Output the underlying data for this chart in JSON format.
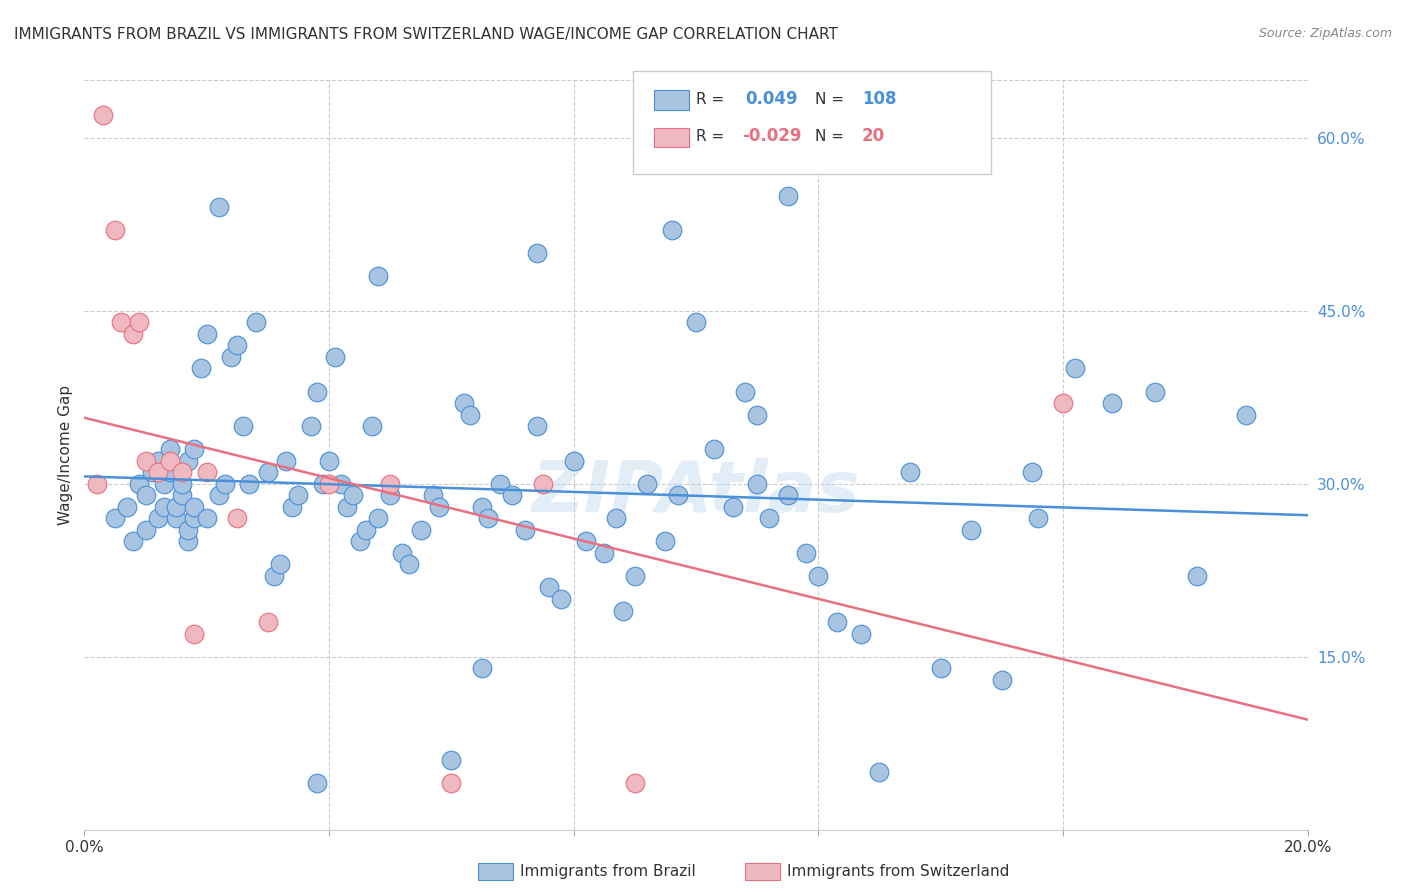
{
  "title": "IMMIGRANTS FROM BRAZIL VS IMMIGRANTS FROM SWITZERLAND WAGE/INCOME GAP CORRELATION CHART",
  "source": "Source: ZipAtlas.com",
  "ylabel": "Wage/Income Gap",
  "x_min": 0.0,
  "x_max": 0.2,
  "y_min": 0.0,
  "y_max": 0.65,
  "x_ticks": [
    0.0,
    0.04,
    0.08,
    0.12,
    0.16,
    0.2
  ],
  "x_tick_labels": [
    "0.0%",
    "",
    "",
    "",
    "",
    "20.0%"
  ],
  "y_ticks_right": [
    0.15,
    0.3,
    0.45,
    0.6
  ],
  "y_tick_labels_right": [
    "15.0%",
    "30.0%",
    "45.0%",
    "60.0%"
  ],
  "brazil_R": "0.049",
  "brazil_N": "108",
  "swiss_R": "-0.029",
  "swiss_N": "20",
  "brazil_color": "#a8c4e0",
  "swiss_color": "#f0b8c0",
  "brazil_line_color": "#4a90d9",
  "swiss_line_color": "#e87080",
  "legend_label_brazil": "Immigrants from Brazil",
  "legend_label_swiss": "Immigrants from Switzerland",
  "brazil_scatter_x": [
    0.005,
    0.007,
    0.008,
    0.009,
    0.01,
    0.01,
    0.011,
    0.012,
    0.012,
    0.013,
    0.013,
    0.014,
    0.014,
    0.015,
    0.015,
    0.016,
    0.016,
    0.017,
    0.017,
    0.017,
    0.018,
    0.018,
    0.018,
    0.019,
    0.02,
    0.02,
    0.022,
    0.023,
    0.024,
    0.025,
    0.026,
    0.027,
    0.028,
    0.03,
    0.031,
    0.032,
    0.033,
    0.034,
    0.035,
    0.037,
    0.038,
    0.039,
    0.04,
    0.041,
    0.042,
    0.043,
    0.044,
    0.045,
    0.046,
    0.047,
    0.048,
    0.05,
    0.052,
    0.053,
    0.055,
    0.057,
    0.058,
    0.06,
    0.062,
    0.063,
    0.065,
    0.066,
    0.068,
    0.07,
    0.072,
    0.074,
    0.076,
    0.078,
    0.08,
    0.082,
    0.085,
    0.087,
    0.088,
    0.09,
    0.092,
    0.095,
    0.097,
    0.1,
    0.103,
    0.106,
    0.108,
    0.11,
    0.112,
    0.115,
    0.118,
    0.12,
    0.123,
    0.127,
    0.13,
    0.135,
    0.14,
    0.145,
    0.15,
    0.156,
    0.162,
    0.168,
    0.175,
    0.182,
    0.19,
    0.115,
    0.096,
    0.074,
    0.048,
    0.022,
    0.11,
    0.065,
    0.038,
    0.155
  ],
  "brazil_scatter_y": [
    0.27,
    0.28,
    0.25,
    0.3,
    0.26,
    0.29,
    0.31,
    0.27,
    0.32,
    0.28,
    0.3,
    0.31,
    0.33,
    0.27,
    0.28,
    0.29,
    0.3,
    0.25,
    0.26,
    0.32,
    0.33,
    0.27,
    0.28,
    0.4,
    0.27,
    0.43,
    0.29,
    0.3,
    0.41,
    0.42,
    0.35,
    0.3,
    0.44,
    0.31,
    0.22,
    0.23,
    0.32,
    0.28,
    0.29,
    0.35,
    0.38,
    0.3,
    0.32,
    0.41,
    0.3,
    0.28,
    0.29,
    0.25,
    0.26,
    0.35,
    0.27,
    0.29,
    0.24,
    0.23,
    0.26,
    0.29,
    0.28,
    0.06,
    0.37,
    0.36,
    0.28,
    0.27,
    0.3,
    0.29,
    0.26,
    0.35,
    0.21,
    0.2,
    0.32,
    0.25,
    0.24,
    0.27,
    0.19,
    0.22,
    0.3,
    0.25,
    0.29,
    0.44,
    0.33,
    0.28,
    0.38,
    0.3,
    0.27,
    0.29,
    0.24,
    0.22,
    0.18,
    0.17,
    0.05,
    0.31,
    0.14,
    0.26,
    0.13,
    0.27,
    0.4,
    0.37,
    0.38,
    0.22,
    0.36,
    0.55,
    0.52,
    0.5,
    0.48,
    0.54,
    0.36,
    0.14,
    0.04,
    0.31
  ],
  "swiss_scatter_x": [
    0.002,
    0.003,
    0.005,
    0.006,
    0.008,
    0.009,
    0.01,
    0.012,
    0.014,
    0.016,
    0.018,
    0.02,
    0.025,
    0.03,
    0.04,
    0.05,
    0.06,
    0.075,
    0.09,
    0.16
  ],
  "swiss_scatter_y": [
    0.3,
    0.62,
    0.52,
    0.44,
    0.43,
    0.44,
    0.32,
    0.31,
    0.32,
    0.31,
    0.17,
    0.31,
    0.27,
    0.18,
    0.3,
    0.3,
    0.04,
    0.3,
    0.04,
    0.37
  ]
}
